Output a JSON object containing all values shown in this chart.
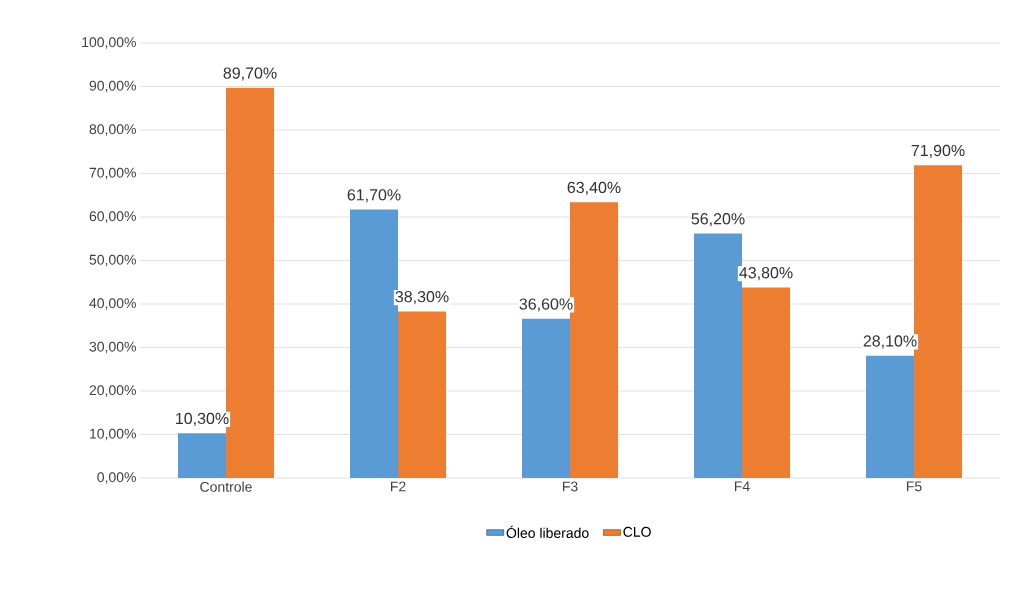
{
  "chart_data": {
    "type": "bar",
    "categories": [
      "Controle",
      "F2",
      "F3",
      "F4",
      "F5"
    ],
    "series": [
      {
        "name": "Óleo liberado",
        "color": "#5b9bd5",
        "values": [
          10.3,
          61.7,
          36.6,
          56.2,
          28.1
        ],
        "value_labels": [
          "10,30%",
          "61,70%",
          "36,60%",
          "56,20%",
          "28,10%"
        ]
      },
      {
        "name": "CLO",
        "color": "#ed7d31",
        "values": [
          89.7,
          38.3,
          63.4,
          43.8,
          71.9
        ],
        "value_labels": [
          "89,70%",
          "38,30%",
          "63,40%",
          "43,80%",
          "71,90%"
        ]
      }
    ],
    "ylim": [
      0,
      100
    ],
    "yticks": [
      {
        "value": 0,
        "label": "0,00%"
      },
      {
        "value": 10,
        "label": "10,00%"
      },
      {
        "value": 20,
        "label": "20,00%"
      },
      {
        "value": 30,
        "label": "30,00%"
      },
      {
        "value": 40,
        "label": "40,00%"
      },
      {
        "value": 50,
        "label": "50,00%"
      },
      {
        "value": 60,
        "label": "60,00%"
      },
      {
        "value": 70,
        "label": "70,00%"
      },
      {
        "value": 80,
        "label": "80,00%"
      },
      {
        "value": 90,
        "label": "90,00%"
      },
      {
        "value": 100,
        "label": "100,00%"
      }
    ],
    "grid": "y",
    "legend": "bottom"
  }
}
